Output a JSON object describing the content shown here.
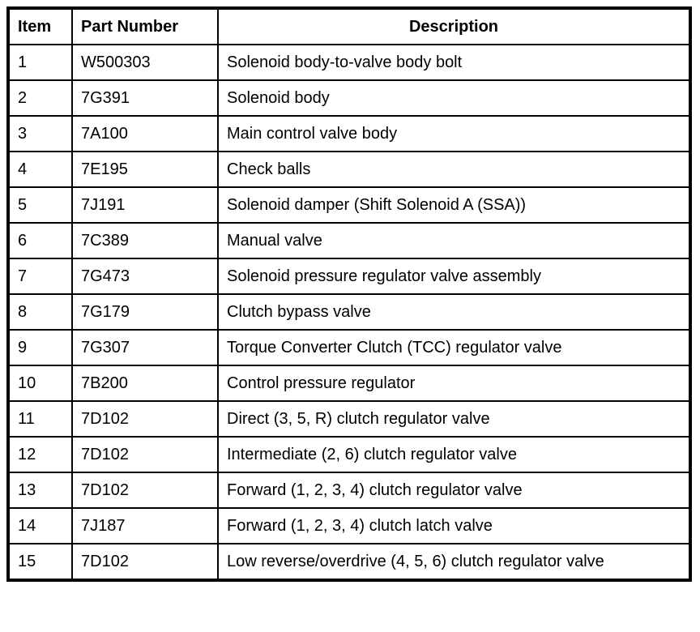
{
  "table": {
    "headers": {
      "item": "Item",
      "part_number": "Part Number",
      "description": "Description"
    },
    "rows": [
      {
        "item": "1",
        "part_number": "W500303",
        "description": "Solenoid body-to-valve body bolt"
      },
      {
        "item": "2",
        "part_number": "7G391",
        "description": "Solenoid body"
      },
      {
        "item": "3",
        "part_number": "7A100",
        "description": "Main control valve body"
      },
      {
        "item": "4",
        "part_number": "7E195",
        "description": "Check balls"
      },
      {
        "item": "5",
        "part_number": "7J191",
        "description": "Solenoid damper (Shift Solenoid A (SSA))"
      },
      {
        "item": "6",
        "part_number": "7C389",
        "description": "Manual valve"
      },
      {
        "item": "7",
        "part_number": "7G473",
        "description": "Solenoid pressure regulator valve assembly"
      },
      {
        "item": "8",
        "part_number": "7G179",
        "description": "Clutch bypass valve"
      },
      {
        "item": "9",
        "part_number": "7G307",
        "description": "Torque Converter Clutch (TCC) regulator valve"
      },
      {
        "item": "10",
        "part_number": "7B200",
        "description": "Control pressure regulator"
      },
      {
        "item": "11",
        "part_number": "7D102",
        "description": "Direct (3, 5, R) clutch regulator valve"
      },
      {
        "item": "12",
        "part_number": "7D102",
        "description": "Intermediate (2, 6) clutch regulator valve"
      },
      {
        "item": "13",
        "part_number": "7D102",
        "description": "Forward (1, 2, 3, 4) clutch regulator valve"
      },
      {
        "item": "14",
        "part_number": "7J187",
        "description": "Forward (1, 2, 3, 4) clutch latch valve"
      },
      {
        "item": "15",
        "part_number": "7D102",
        "description": "Low reverse/overdrive (4, 5, 6) clutch regulator valve"
      }
    ]
  },
  "colors": {
    "border": "#000000",
    "background": "#ffffff",
    "text": "#000000"
  }
}
